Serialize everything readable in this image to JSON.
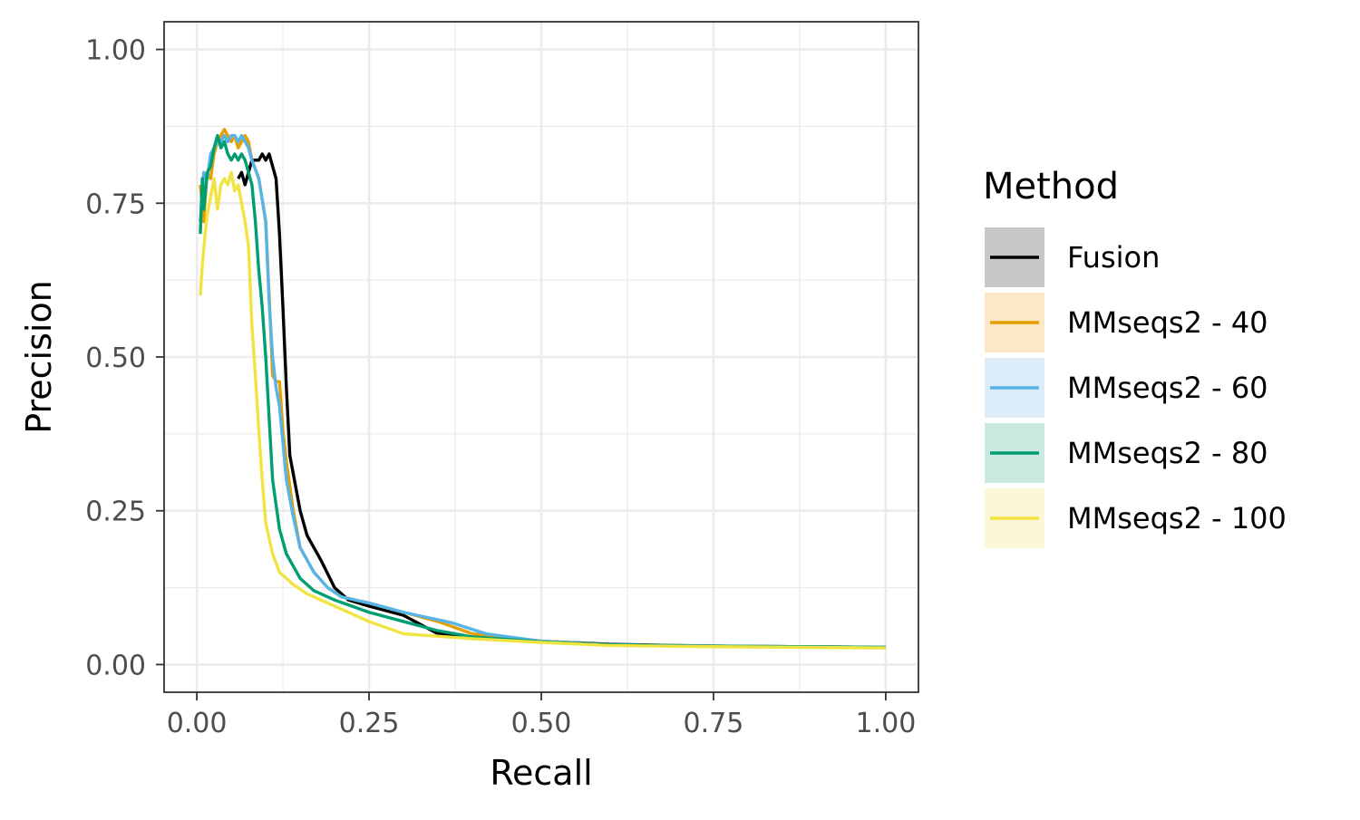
{
  "chart_data": {
    "type": "line",
    "xlabel": "Recall",
    "ylabel": "Precision",
    "xlim": [
      -0.0475,
      1.0475
    ],
    "ylim": [
      -0.045,
      1.045
    ],
    "x_ticks": [
      "0.00",
      "0.25",
      "0.50",
      "0.75",
      "1.00"
    ],
    "y_ticks": [
      "0.00",
      "0.25",
      "0.50",
      "0.75",
      "1.00"
    ],
    "grid": true,
    "legend": {
      "title": "Method",
      "position": "right"
    },
    "series": [
      {
        "name": "Fusion",
        "color": "#000000",
        "fill": "#c8c8c8",
        "points": [
          [
            0.06,
            0.79
          ],
          [
            0.065,
            0.8
          ],
          [
            0.07,
            0.78
          ],
          [
            0.075,
            0.8
          ],
          [
            0.08,
            0.82
          ],
          [
            0.09,
            0.82
          ],
          [
            0.095,
            0.83
          ],
          [
            0.1,
            0.82
          ],
          [
            0.105,
            0.83
          ],
          [
            0.11,
            0.81
          ],
          [
            0.115,
            0.79
          ],
          [
            0.12,
            0.7
          ],
          [
            0.125,
            0.58
          ],
          [
            0.13,
            0.45
          ],
          [
            0.135,
            0.34
          ],
          [
            0.15,
            0.25
          ],
          [
            0.16,
            0.21
          ],
          [
            0.18,
            0.17
          ],
          [
            0.2,
            0.125
          ],
          [
            0.22,
            0.105
          ],
          [
            0.25,
            0.095
          ],
          [
            0.3,
            0.08
          ],
          [
            0.35,
            0.05
          ],
          [
            0.4,
            0.045
          ],
          [
            0.5,
            0.038
          ],
          [
            0.6,
            0.033
          ],
          [
            0.75,
            0.03
          ],
          [
            1.0,
            0.028
          ]
        ]
      },
      {
        "name": "MMseqs2 - 40",
        "color": "#e69f00",
        "fill": "#fae8c6",
        "points": [
          [
            0.005,
            0.78
          ],
          [
            0.01,
            0.72
          ],
          [
            0.015,
            0.8
          ],
          [
            0.02,
            0.79
          ],
          [
            0.025,
            0.83
          ],
          [
            0.03,
            0.85
          ],
          [
            0.035,
            0.86
          ],
          [
            0.04,
            0.87
          ],
          [
            0.045,
            0.86
          ],
          [
            0.05,
            0.85
          ],
          [
            0.055,
            0.86
          ],
          [
            0.06,
            0.84
          ],
          [
            0.065,
            0.85
          ],
          [
            0.07,
            0.86
          ],
          [
            0.075,
            0.85
          ],
          [
            0.08,
            0.82
          ],
          [
            0.09,
            0.79
          ],
          [
            0.1,
            0.72
          ],
          [
            0.105,
            0.6
          ],
          [
            0.11,
            0.47
          ],
          [
            0.115,
            0.46
          ],
          [
            0.12,
            0.46
          ],
          [
            0.125,
            0.38
          ],
          [
            0.13,
            0.33
          ],
          [
            0.14,
            0.25
          ],
          [
            0.15,
            0.19
          ],
          [
            0.17,
            0.15
          ],
          [
            0.19,
            0.125
          ],
          [
            0.21,
            0.11
          ],
          [
            0.25,
            0.1
          ],
          [
            0.3,
            0.085
          ],
          [
            0.35,
            0.07
          ],
          [
            0.4,
            0.05
          ],
          [
            0.5,
            0.038
          ],
          [
            0.6,
            0.032
          ],
          [
            0.75,
            0.03
          ],
          [
            1.0,
            0.028
          ]
        ]
      },
      {
        "name": "MMseqs2 - 60",
        "color": "#56b4e9",
        "fill": "#dcedf9",
        "points": [
          [
            0.005,
            0.72
          ],
          [
            0.01,
            0.8
          ],
          [
            0.015,
            0.79
          ],
          [
            0.02,
            0.83
          ],
          [
            0.025,
            0.84
          ],
          [
            0.03,
            0.85
          ],
          [
            0.035,
            0.85
          ],
          [
            0.04,
            0.86
          ],
          [
            0.045,
            0.85
          ],
          [
            0.05,
            0.86
          ],
          [
            0.055,
            0.86
          ],
          [
            0.06,
            0.85
          ],
          [
            0.065,
            0.86
          ],
          [
            0.07,
            0.85
          ],
          [
            0.075,
            0.84
          ],
          [
            0.08,
            0.82
          ],
          [
            0.09,
            0.79
          ],
          [
            0.1,
            0.72
          ],
          [
            0.105,
            0.59
          ],
          [
            0.11,
            0.5
          ],
          [
            0.115,
            0.45
          ],
          [
            0.12,
            0.42
          ],
          [
            0.13,
            0.3
          ],
          [
            0.14,
            0.24
          ],
          [
            0.15,
            0.19
          ],
          [
            0.17,
            0.15
          ],
          [
            0.19,
            0.125
          ],
          [
            0.21,
            0.11
          ],
          [
            0.25,
            0.1
          ],
          [
            0.3,
            0.085
          ],
          [
            0.37,
            0.068
          ],
          [
            0.42,
            0.05
          ],
          [
            0.5,
            0.038
          ],
          [
            0.6,
            0.032
          ],
          [
            0.75,
            0.03
          ],
          [
            1.0,
            0.028
          ]
        ]
      },
      {
        "name": "MMseqs2 - 80",
        "color": "#009e73",
        "fill": "#cbe9e0",
        "points": [
          [
            0.005,
            0.7
          ],
          [
            0.008,
            0.79
          ],
          [
            0.01,
            0.74
          ],
          [
            0.015,
            0.8
          ],
          [
            0.02,
            0.81
          ],
          [
            0.025,
            0.84
          ],
          [
            0.03,
            0.86
          ],
          [
            0.035,
            0.84
          ],
          [
            0.04,
            0.85
          ],
          [
            0.045,
            0.83
          ],
          [
            0.05,
            0.82
          ],
          [
            0.055,
            0.83
          ],
          [
            0.06,
            0.82
          ],
          [
            0.065,
            0.83
          ],
          [
            0.07,
            0.82
          ],
          [
            0.075,
            0.8
          ],
          [
            0.08,
            0.78
          ],
          [
            0.085,
            0.72
          ],
          [
            0.09,
            0.64
          ],
          [
            0.095,
            0.58
          ],
          [
            0.1,
            0.5
          ],
          [
            0.105,
            0.4
          ],
          [
            0.11,
            0.3
          ],
          [
            0.12,
            0.22
          ],
          [
            0.13,
            0.18
          ],
          [
            0.15,
            0.14
          ],
          [
            0.17,
            0.12
          ],
          [
            0.2,
            0.105
          ],
          [
            0.25,
            0.085
          ],
          [
            0.3,
            0.07
          ],
          [
            0.35,
            0.055
          ],
          [
            0.4,
            0.045
          ],
          [
            0.5,
            0.037
          ],
          [
            0.6,
            0.032
          ],
          [
            0.75,
            0.03
          ],
          [
            1.0,
            0.028
          ]
        ]
      },
      {
        "name": "MMseqs2 - 100",
        "color": "#f0e442",
        "fill": "#fcf8d7",
        "points": [
          [
            0.005,
            0.6
          ],
          [
            0.008,
            0.65
          ],
          [
            0.012,
            0.7
          ],
          [
            0.015,
            0.73
          ],
          [
            0.02,
            0.76
          ],
          [
            0.025,
            0.79
          ],
          [
            0.03,
            0.74
          ],
          [
            0.035,
            0.78
          ],
          [
            0.04,
            0.79
          ],
          [
            0.045,
            0.78
          ],
          [
            0.05,
            0.8
          ],
          [
            0.055,
            0.77
          ],
          [
            0.06,
            0.78
          ],
          [
            0.065,
            0.75
          ],
          [
            0.07,
            0.72
          ],
          [
            0.075,
            0.68
          ],
          [
            0.08,
            0.55
          ],
          [
            0.085,
            0.47
          ],
          [
            0.09,
            0.38
          ],
          [
            0.095,
            0.3
          ],
          [
            0.1,
            0.23
          ],
          [
            0.11,
            0.18
          ],
          [
            0.12,
            0.15
          ],
          [
            0.14,
            0.13
          ],
          [
            0.16,
            0.115
          ],
          [
            0.2,
            0.095
          ],
          [
            0.25,
            0.07
          ],
          [
            0.3,
            0.05
          ],
          [
            0.4,
            0.042
          ],
          [
            0.5,
            0.036
          ],
          [
            0.6,
            0.031
          ],
          [
            0.75,
            0.029
          ],
          [
            1.0,
            0.027
          ]
        ]
      }
    ]
  }
}
